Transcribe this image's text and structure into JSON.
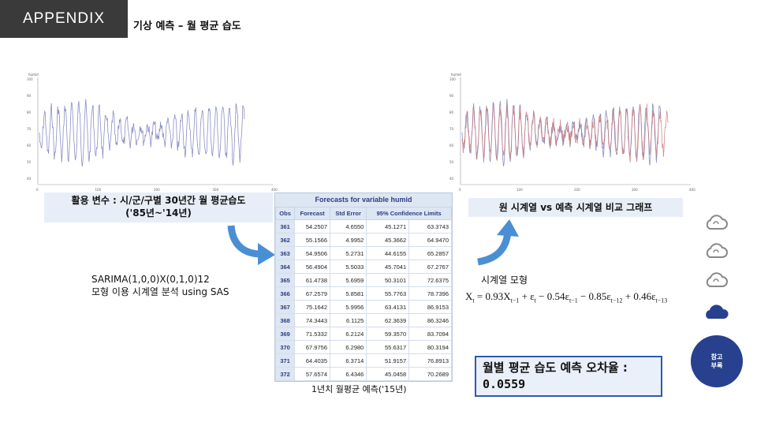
{
  "header": {
    "badge": "APPENDIX",
    "title": "기상 예측 – 월 평균 습도"
  },
  "left_chart": {
    "ylabel": "humid",
    "yticks": [
      "100",
      "90",
      "80",
      "70",
      "60",
      "50",
      "40"
    ],
    "xticks": [
      "0",
      "100",
      "200",
      "300",
      "400"
    ],
    "caption_line1": "활용 변수 : 시/군/구별 30년간 월 평균습도",
    "caption_line2": "('85년~'14년)"
  },
  "right_chart": {
    "ylabel": "humid",
    "yticks": [
      "100",
      "90",
      "80",
      "70",
      "60",
      "50",
      "40"
    ],
    "xticks": [
      "0",
      "100",
      "200",
      "300",
      "400"
    ],
    "caption": "원 시계열 vs 예측 시계열 비교 그래프"
  },
  "model": {
    "line1": "SARIMA(1,0,0)X(0,1,0)12",
    "line2": "모형 이용 시계열 분석 using SAS"
  },
  "forecast_table": {
    "title": "Forecasts for variable humid",
    "headers": [
      "Obs",
      "Forecast",
      "Std Error",
      "95% Confidence Limits"
    ],
    "rows": [
      [
        "361",
        "54.2507",
        "4.6550",
        "45.1271",
        "63.3743"
      ],
      [
        "362",
        "55.1566",
        "4.9952",
        "45.3662",
        "64.9470"
      ],
      [
        "363",
        "54.9506",
        "5.2731",
        "44.6155",
        "65.2857"
      ],
      [
        "364",
        "56.4904",
        "5.5033",
        "45.7041",
        "67.2767"
      ],
      [
        "365",
        "61.4738",
        "5.6959",
        "50.3101",
        "72.6375"
      ],
      [
        "366",
        "67.2579",
        "5.8581",
        "55.7763",
        "78.7396"
      ],
      [
        "367",
        "75.1642",
        "5.9956",
        "63.4131",
        "86.9153"
      ],
      [
        "368",
        "74.3443",
        "6.1125",
        "62.3639",
        "86.3246"
      ],
      [
        "369",
        "71.5332",
        "6.2124",
        "59.3570",
        "83.7094"
      ],
      [
        "370",
        "67.9756",
        "6.2980",
        "55.6317",
        "80.3194"
      ],
      [
        "371",
        "64.4035",
        "6.3714",
        "51.9157",
        "76.8913"
      ],
      [
        "372",
        "57.6574",
        "6.4346",
        "45.0458",
        "70.2689"
      ]
    ],
    "caption": "1년치 월평균 예측('15년)"
  },
  "ts_model": {
    "label": "시계열 모형",
    "formula": "X_t = 0.93 X_{t-1} + ε_t − 0.54 ε_{t-1} − 0.85 ε_{t-12} + 0.46 ε_{t-13}",
    "X": "X",
    "t": "t",
    "eq": " = 0.93",
    "tm1": "t−1",
    "plus": " + ",
    "eps": "ε",
    "c1": " − 0.54",
    "c2": " − 0.85",
    "tm12": "t−12",
    "c3": " + 0.46",
    "tm13": "t−13"
  },
  "error_box": {
    "label": "월별 평균 습도 예측 오차율 :",
    "value": "0.0559"
  },
  "sidebar": {
    "icons": [
      "cloud-outline-icon",
      "cloud-outline-icon",
      "cloud-outline-icon",
      "cloud-filled-icon"
    ],
    "ref_line1": "참고",
    "ref_line2": "부록"
  },
  "colors": {
    "badge": "#3a3a3a",
    "accent_blue": "#27418e",
    "arrow_blue": "#4a8fd4",
    "original_series": "#8b8fc4",
    "forecast_series": "#c97a7a"
  }
}
